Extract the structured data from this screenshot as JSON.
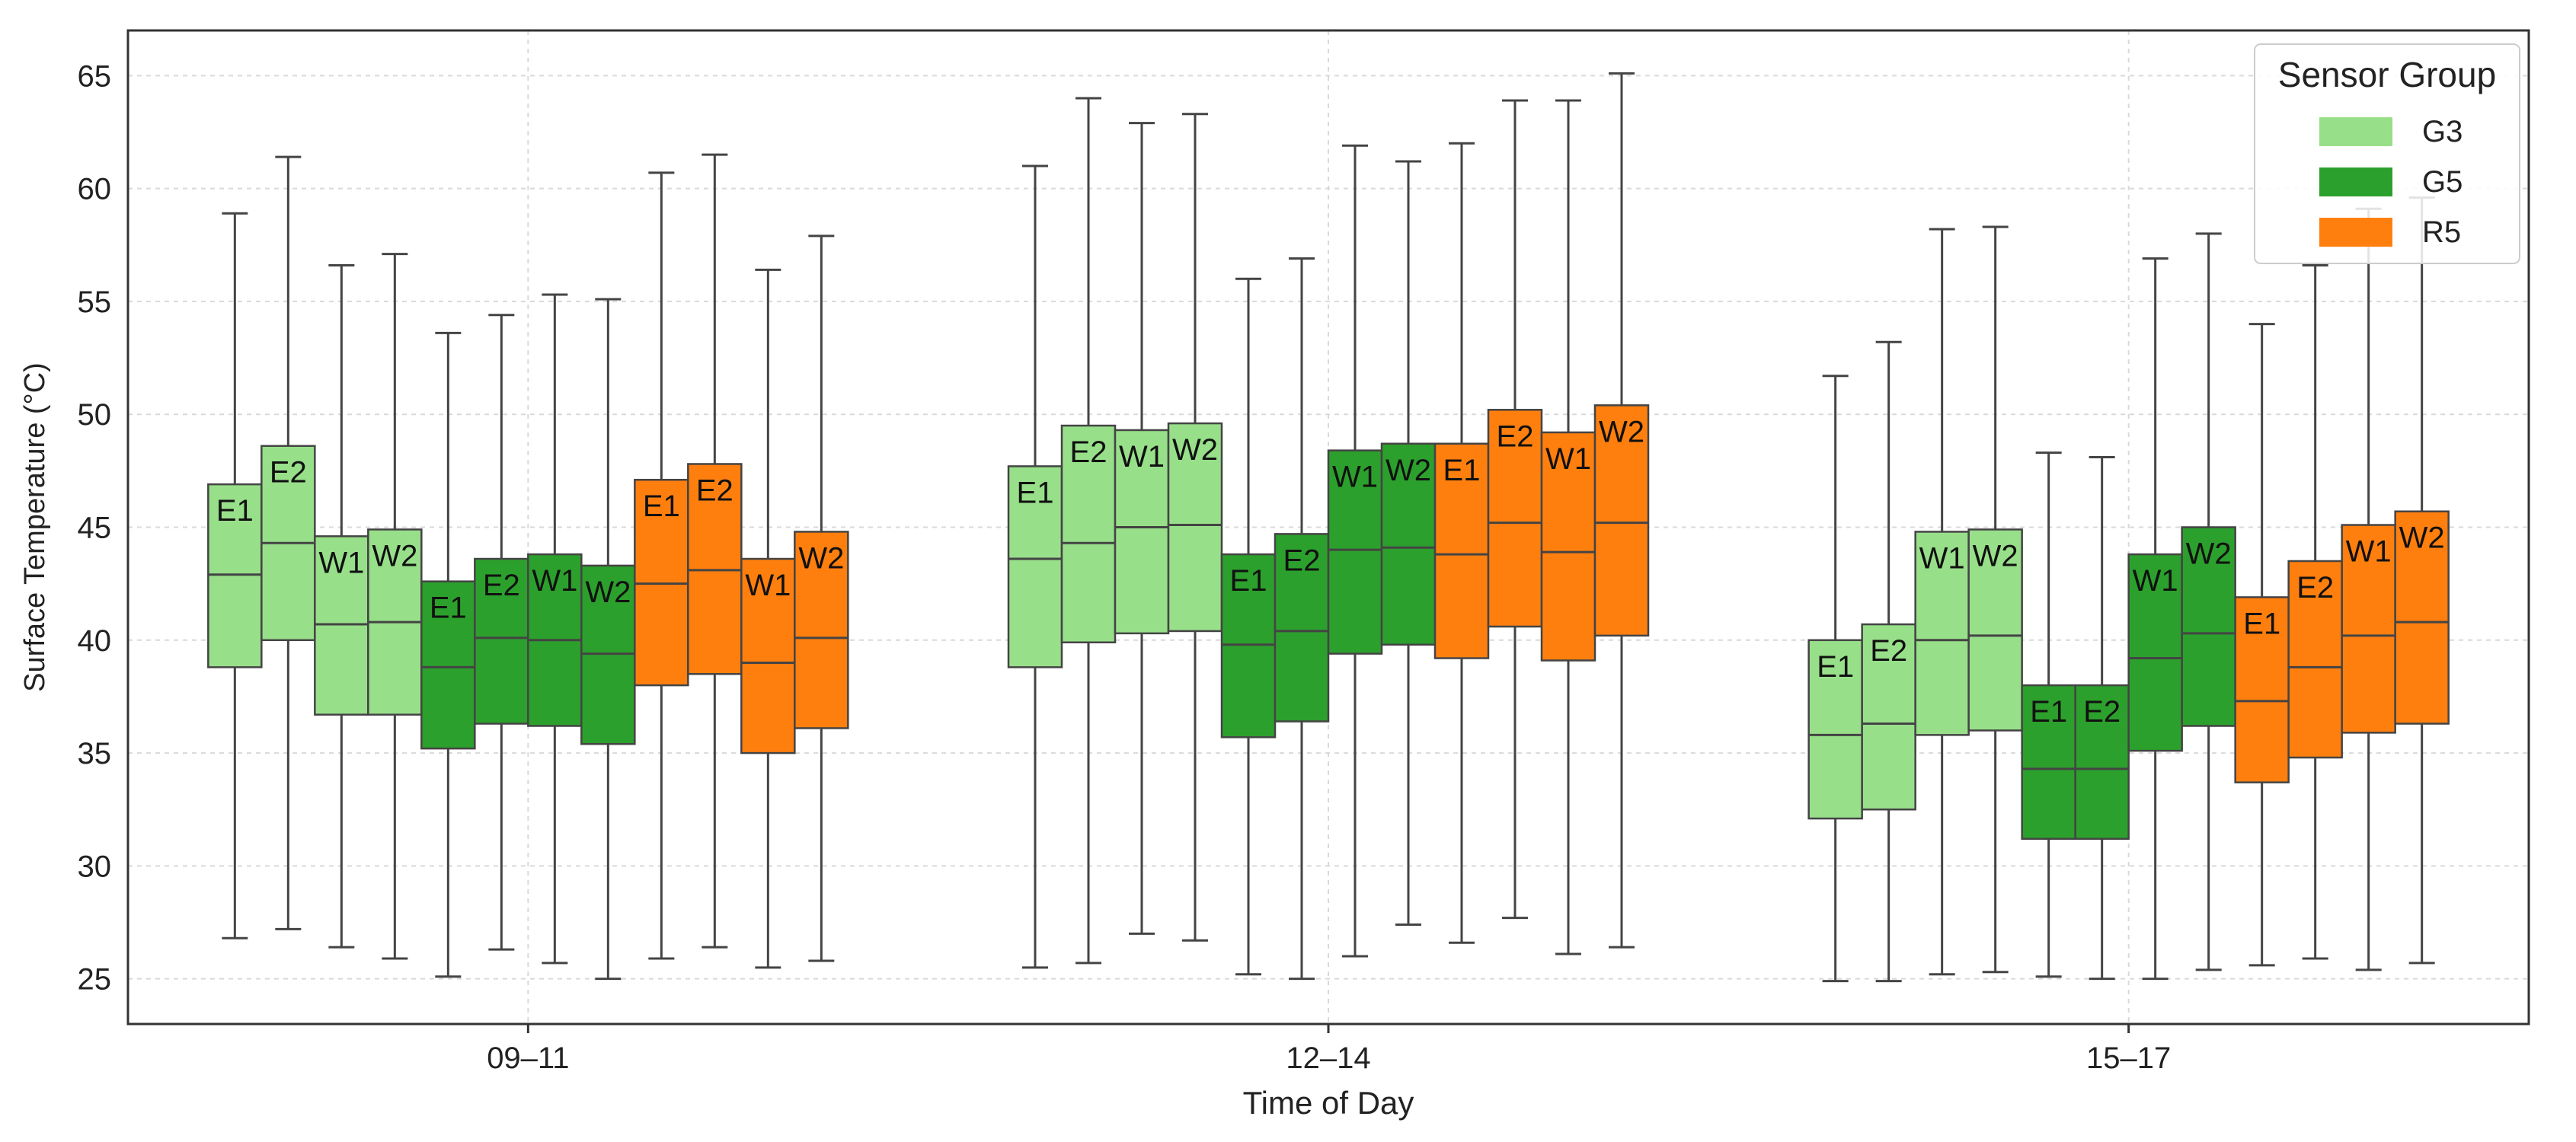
{
  "chart_data": {
    "type": "boxplot",
    "title": "",
    "xlabel": "Time of Day",
    "ylabel": "Surface Temperature (°C)",
    "ylim": [
      23,
      67
    ],
    "yticks": [
      25,
      30,
      35,
      40,
      45,
      50,
      55,
      60,
      65
    ],
    "grid": true,
    "categories": [
      "09–11",
      "12–14",
      "15–17"
    ],
    "legend": {
      "title": "Sensor Group",
      "placement": "top-right",
      "entries": [
        {
          "label": "G3",
          "color": "#98df8a"
        },
        {
          "label": "G5",
          "color": "#2ca02c"
        },
        {
          "label": "R5",
          "color": "#ff7f0e"
        }
      ]
    },
    "series": [
      {
        "category": "09–11",
        "boxes": [
          {
            "group": "G3",
            "label": "E1",
            "min": 26.8,
            "q1": 38.8,
            "median": 42.9,
            "q3": 46.9,
            "max": 58.9
          },
          {
            "group": "G3",
            "label": "E2",
            "min": 27.2,
            "q1": 40.0,
            "median": 44.3,
            "q3": 48.6,
            "max": 61.4
          },
          {
            "group": "G3",
            "label": "W1",
            "min": 26.4,
            "q1": 36.7,
            "median": 40.7,
            "q3": 44.6,
            "max": 56.6
          },
          {
            "group": "G3",
            "label": "W2",
            "min": 25.9,
            "q1": 36.7,
            "median": 40.8,
            "q3": 44.9,
            "max": 57.1
          },
          {
            "group": "G5",
            "label": "E1",
            "min": 25.1,
            "q1": 35.2,
            "median": 38.8,
            "q3": 42.6,
            "max": 53.6
          },
          {
            "group": "G5",
            "label": "E2",
            "min": 26.3,
            "q1": 36.3,
            "median": 40.1,
            "q3": 43.6,
            "max": 54.4
          },
          {
            "group": "G5",
            "label": "W1",
            "min": 25.7,
            "q1": 36.2,
            "median": 40.0,
            "q3": 43.8,
            "max": 55.3
          },
          {
            "group": "G5",
            "label": "W2",
            "min": 25.0,
            "q1": 35.4,
            "median": 39.4,
            "q3": 43.3,
            "max": 55.1
          },
          {
            "group": "R5",
            "label": "E1",
            "min": 25.9,
            "q1": 38.0,
            "median": 42.5,
            "q3": 47.1,
            "max": 60.7
          },
          {
            "group": "R5",
            "label": "E2",
            "min": 26.4,
            "q1": 38.5,
            "median": 43.1,
            "q3": 47.8,
            "max": 61.5
          },
          {
            "group": "R5",
            "label": "W1",
            "min": 25.5,
            "q1": 35.0,
            "median": 39.0,
            "q3": 43.6,
            "max": 56.4
          },
          {
            "group": "R5",
            "label": "W2",
            "min": 25.8,
            "q1": 36.1,
            "median": 40.1,
            "q3": 44.8,
            "max": 57.9
          }
        ]
      },
      {
        "category": "12–14",
        "boxes": [
          {
            "group": "G3",
            "label": "E1",
            "min": 25.5,
            "q1": 38.8,
            "median": 43.6,
            "q3": 47.7,
            "max": 61.0
          },
          {
            "group": "G3",
            "label": "E2",
            "min": 25.7,
            "q1": 39.9,
            "median": 44.3,
            "q3": 49.5,
            "max": 64.0
          },
          {
            "group": "G3",
            "label": "W1",
            "min": 27.0,
            "q1": 40.3,
            "median": 45.0,
            "q3": 49.3,
            "max": 62.9
          },
          {
            "group": "G3",
            "label": "W2",
            "min": 26.7,
            "q1": 40.4,
            "median": 45.1,
            "q3": 49.6,
            "max": 63.3
          },
          {
            "group": "G5",
            "label": "E1",
            "min": 25.2,
            "q1": 35.7,
            "median": 39.8,
            "q3": 43.8,
            "max": 56.0
          },
          {
            "group": "G5",
            "label": "E2",
            "min": 25.0,
            "q1": 36.4,
            "median": 40.4,
            "q3": 44.7,
            "max": 56.9
          },
          {
            "group": "G5",
            "label": "W1",
            "min": 26.0,
            "q1": 39.4,
            "median": 44.0,
            "q3": 48.4,
            "max": 61.9
          },
          {
            "group": "G5",
            "label": "W2",
            "min": 27.4,
            "q1": 39.8,
            "median": 44.1,
            "q3": 48.7,
            "max": 61.2
          },
          {
            "group": "R5",
            "label": "E1",
            "min": 26.6,
            "q1": 39.2,
            "median": 43.8,
            "q3": 48.7,
            "max": 62.0
          },
          {
            "group": "R5",
            "label": "E2",
            "min": 27.7,
            "q1": 40.6,
            "median": 45.2,
            "q3": 50.2,
            "max": 63.9
          },
          {
            "group": "R5",
            "label": "W1",
            "min": 26.1,
            "q1": 39.1,
            "median": 43.9,
            "q3": 49.2,
            "max": 63.9
          },
          {
            "group": "R5",
            "label": "W2",
            "min": 26.4,
            "q1": 40.2,
            "median": 45.2,
            "q3": 50.4,
            "max": 65.1
          }
        ]
      },
      {
        "category": "15–17",
        "boxes": [
          {
            "group": "G3",
            "label": "E1",
            "min": 24.9,
            "q1": 32.1,
            "median": 35.8,
            "q3": 40.0,
            "max": 51.7
          },
          {
            "group": "G3",
            "label": "E2",
            "min": 24.9,
            "q1": 32.5,
            "median": 36.3,
            "q3": 40.7,
            "max": 53.2
          },
          {
            "group": "G3",
            "label": "W1",
            "min": 25.2,
            "q1": 35.8,
            "median": 40.0,
            "q3": 44.8,
            "max": 58.2
          },
          {
            "group": "G3",
            "label": "W2",
            "min": 25.3,
            "q1": 36.0,
            "median": 40.2,
            "q3": 44.9,
            "max": 58.3
          },
          {
            "group": "G5",
            "label": "E1",
            "min": 25.1,
            "q1": 31.2,
            "median": 34.3,
            "q3": 38.0,
            "max": 48.3
          },
          {
            "group": "G5",
            "label": "E2",
            "min": 25.0,
            "q1": 31.2,
            "median": 34.3,
            "q3": 38.0,
            "max": 48.1
          },
          {
            "group": "G5",
            "label": "W1",
            "min": 25.0,
            "q1": 35.1,
            "median": 39.2,
            "q3": 43.8,
            "max": 56.9
          },
          {
            "group": "G5",
            "label": "W2",
            "min": 25.4,
            "q1": 36.2,
            "median": 40.3,
            "q3": 45.0,
            "max": 58.0
          },
          {
            "group": "R5",
            "label": "E1",
            "min": 25.6,
            "q1": 33.7,
            "median": 37.3,
            "q3": 41.9,
            "max": 54.0
          },
          {
            "group": "R5",
            "label": "E2",
            "min": 25.9,
            "q1": 34.8,
            "median": 38.8,
            "q3": 43.5,
            "max": 56.6
          },
          {
            "group": "R5",
            "label": "W1",
            "min": 25.4,
            "q1": 35.9,
            "median": 40.2,
            "q3": 45.1,
            "max": 59.1
          },
          {
            "group": "R5",
            "label": "W2",
            "min": 25.7,
            "q1": 36.3,
            "median": 40.8,
            "q3": 45.7,
            "max": 59.6
          }
        ]
      }
    ]
  }
}
